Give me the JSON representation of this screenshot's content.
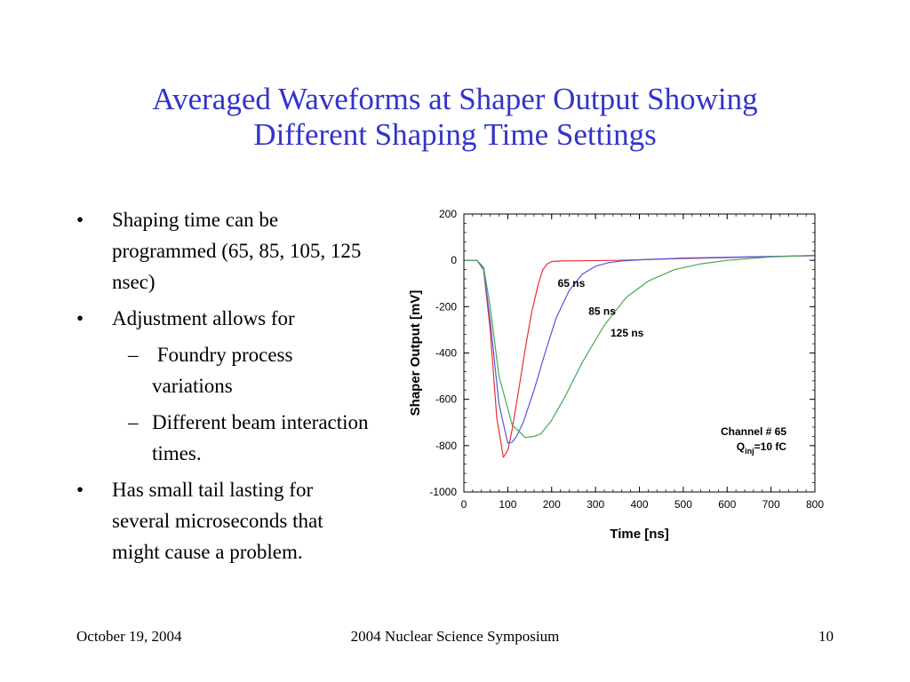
{
  "slide": {
    "title_line1": "Averaged Waveforms at Shaper Output Showing",
    "title_line2": "Different Shaping Time Settings",
    "bullets": [
      {
        "bullet": "•",
        "text": "Shaping time can be programmed (65, 85, 105, 125 nsec)"
      },
      {
        "bullet": "•",
        "text": "Adjustment allows for"
      },
      {
        "dash": "–",
        "text": " Foundry process variations"
      },
      {
        "dash": "–",
        "text": "Different beam interaction times."
      },
      {
        "bullet": "•",
        "text": "Has small tail lasting for several microseconds that might cause a problem."
      }
    ],
    "footer": {
      "date": "October 19, 2004",
      "event": "2004 Nuclear Science Symposium",
      "page": "10"
    }
  },
  "chart_data": {
    "type": "line",
    "xlabel": "Time [ns]",
    "ylabel": "Shaper Output [mV]",
    "xlim": [
      0,
      800
    ],
    "ylim": [
      -1000,
      200
    ],
    "xticks": [
      0,
      100,
      200,
      300,
      400,
      500,
      600,
      700,
      800
    ],
    "yticks": [
      200,
      0,
      -200,
      -400,
      -600,
      -800,
      -1000
    ],
    "series": [
      {
        "label": "65 ns",
        "color": "#e83030",
        "x": [
          0,
          30,
          45,
          60,
          75,
          90,
          100,
          110,
          125,
          140,
          155,
          170,
          180,
          190,
          200,
          220,
          260,
          350,
          500,
          800
        ],
        "y": [
          0,
          0,
          -40,
          -300,
          -680,
          -850,
          -820,
          -730,
          -560,
          -380,
          -220,
          -100,
          -40,
          -15,
          -5,
          -3,
          -2,
          0,
          8,
          20
        ]
      },
      {
        "label": "85 ns",
        "color": "#5555dd",
        "x": [
          0,
          30,
          45,
          60,
          80,
          100,
          110,
          120,
          135,
          160,
          185,
          210,
          240,
          270,
          300,
          330,
          360,
          400,
          500,
          800
        ],
        "y": [
          0,
          0,
          -40,
          -260,
          -620,
          -790,
          -785,
          -760,
          -700,
          -560,
          -400,
          -250,
          -130,
          -60,
          -25,
          -10,
          -3,
          2,
          10,
          20
        ]
      },
      {
        "label": "125 ns",
        "color": "#44aa55",
        "x": [
          0,
          30,
          45,
          60,
          80,
          110,
          140,
          160,
          175,
          200,
          230,
          270,
          320,
          370,
          420,
          480,
          540,
          600,
          700,
          800
        ],
        "y": [
          0,
          0,
          -30,
          -200,
          -500,
          -710,
          -765,
          -760,
          -750,
          -690,
          -590,
          -440,
          -280,
          -160,
          -90,
          -40,
          -15,
          0,
          15,
          22
        ]
      }
    ],
    "annotations": [
      {
        "text": "65 ns",
        "x": 245,
        "y": -115
      },
      {
        "text": "85 ns",
        "x": 315,
        "y": -235
      },
      {
        "text": "125 ns",
        "x": 372,
        "y": -330
      }
    ],
    "info_text": {
      "channel": "Channel # 65",
      "q": "Q",
      "q_sub": "inj",
      "q_rest": "=10 fC"
    }
  }
}
